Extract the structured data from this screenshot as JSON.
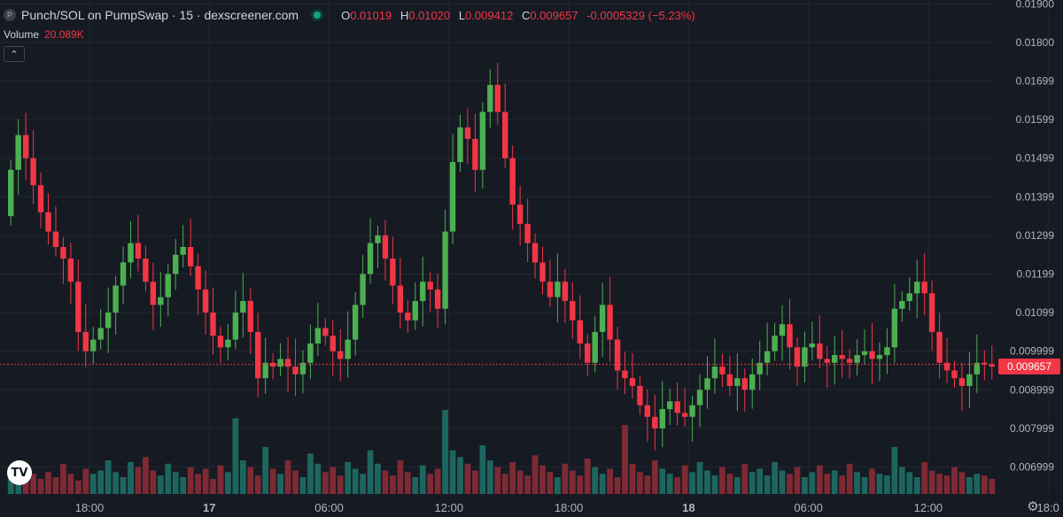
{
  "header": {
    "symbol_icon": "P",
    "title": "Punch/SOL on PumpSwap · 15 · dexscreener.com",
    "ohlc": {
      "o_label": "O",
      "o": "0.01019",
      "h_label": "H",
      "h": "0.01020",
      "l_label": "L",
      "l": "0.009412",
      "c_label": "C",
      "c": "0.009657",
      "change": "-0.0005329 (−5.23%)"
    },
    "volume_label": "Volume",
    "volume_value": "20.089K"
  },
  "colors": {
    "up": "#4caf50",
    "down": "#f23645",
    "bg": "#161a23",
    "grid": "#22262f",
    "vol_up": "#1e6f66",
    "vol_down": "#8a2c36"
  },
  "last_price": "0.009657",
  "logo_text": "TV",
  "chart_data": {
    "type": "candlestick",
    "ylim": [
      0.0063,
      0.0191
    ],
    "y_ticks": [
      "0.006999",
      "0.007999",
      "0.008999",
      "0.009999",
      "0.01099",
      "0.01199",
      "0.01299",
      "0.01399",
      "0.01499",
      "0.01599",
      "0.01699",
      "0.01800",
      "0.01900"
    ],
    "y_tick_values": [
      0.007,
      0.008,
      0.009,
      0.01,
      0.011,
      0.012,
      0.013,
      0.014,
      0.015,
      0.016,
      0.017,
      0.018,
      0.019
    ],
    "x_labels": [
      {
        "label": "18:00",
        "index": 11
      },
      {
        "label": "17",
        "index": 27
      },
      {
        "label": "06:00",
        "index": 43
      },
      {
        "label": "12:00",
        "index": 59
      },
      {
        "label": "18:00",
        "index": 75
      },
      {
        "label": "18",
        "index": 91
      },
      {
        "label": "06:00",
        "index": 107
      },
      {
        "label": "12:00",
        "index": 123
      },
      {
        "label": "18:0",
        "index": 139
      }
    ],
    "close_start": 0.0135,
    "closes": [
      0.0147,
      0.0156,
      0.015,
      0.0143,
      0.0136,
      0.0131,
      0.0127,
      0.0124,
      0.0118,
      0.0105,
      0.01,
      0.0103,
      0.0106,
      0.011,
      0.0117,
      0.0123,
      0.0128,
      0.0124,
      0.0118,
      0.0112,
      0.0114,
      0.012,
      0.0125,
      0.0127,
      0.0122,
      0.0116,
      0.011,
      0.0104,
      0.0101,
      0.0103,
      0.011,
      0.0113,
      0.0105,
      0.0093,
      0.0097,
      0.0096,
      0.0098,
      0.0096,
      0.0094,
      0.0097,
      0.0102,
      0.0106,
      0.0104,
      0.01,
      0.0098,
      0.0103,
      0.0112,
      0.012,
      0.0128,
      0.013,
      0.0124,
      0.0117,
      0.011,
      0.0108,
      0.0113,
      0.0118,
      0.0116,
      0.0111,
      0.0131,
      0.0149,
      0.0158,
      0.0155,
      0.0147,
      0.0162,
      0.0169,
      0.0162,
      0.015,
      0.0138,
      0.0133,
      0.0128,
      0.0123,
      0.0118,
      0.0114,
      0.0118,
      0.0113,
      0.0108,
      0.0102,
      0.0097,
      0.0105,
      0.0112,
      0.0103,
      0.0095,
      0.0093,
      0.0091,
      0.0086,
      0.0083,
      0.008,
      0.0085,
      0.0087,
      0.0084,
      0.0083,
      0.0086,
      0.009,
      0.0093,
      0.0096,
      0.0094,
      0.0091,
      0.0093,
      0.009,
      0.0094,
      0.0097,
      0.01,
      0.0104,
      0.0107,
      0.0101,
      0.0096,
      0.0101,
      0.0102,
      0.0098,
      0.0097,
      0.0099,
      0.0098,
      0.0097,
      0.0099,
      0.01,
      0.0098,
      0.0099,
      0.0101,
      0.0111,
      0.0113,
      0.0115,
      0.0118,
      0.0115,
      0.0105,
      0.0097,
      0.0095,
      0.0093,
      0.0091,
      0.0094,
      0.0097,
      0.00966,
      0.0096
    ],
    "volumes": [
      1.4,
      1.1,
      1.6,
      1.2,
      0.9,
      1.3,
      1.0,
      1.8,
      1.2,
      0.8,
      1.5,
      1.2,
      1.4,
      2.0,
      1.3,
      1.0,
      1.9,
      1.6,
      2.2,
      1.4,
      1.1,
      1.8,
      1.3,
      1.0,
      1.6,
      1.2,
      1.5,
      0.9,
      1.7,
      1.3,
      4.5,
      2.0,
      1.6,
      1.1,
      2.8,
      1.5,
      1.2,
      2.0,
      1.4,
      1.0,
      2.4,
      1.8,
      1.3,
      1.6,
      1.1,
      1.9,
      1.5,
      1.2,
      2.6,
      1.8,
      1.4,
      1.1,
      2.0,
      1.3,
      1.0,
      1.7,
      1.2,
      1.5,
      5.0,
      2.6,
      2.2,
      1.8,
      1.4,
      2.9,
      2.0,
      1.6,
      1.2,
      1.9,
      1.4,
      1.1,
      2.3,
      1.7,
      1.3,
      1.0,
      1.8,
      1.4,
      1.1,
      2.1,
      1.6,
      1.2,
      1.5,
      1.0,
      4.1,
      1.8,
      1.3,
      1.1,
      2.0,
      1.5,
      1.2,
      1.0,
      1.7,
      1.3,
      1.9,
      1.4,
      1.1,
      1.6,
      1.2,
      1.0,
      1.8,
      1.3,
      1.5,
      1.1,
      1.9,
      1.4,
      1.2,
      1.6,
      1.0,
      1.3,
      1.7,
      1.2,
      1.4,
      1.1,
      1.8,
      1.3,
      1.0,
      1.5,
      1.2,
      1.1,
      2.8,
      1.6,
      1.3,
      1.0,
      1.9,
      1.4,
      1.2,
      1.1,
      1.6,
      1.3,
      1.0,
      1.2,
      1.1,
      0.9
    ]
  }
}
